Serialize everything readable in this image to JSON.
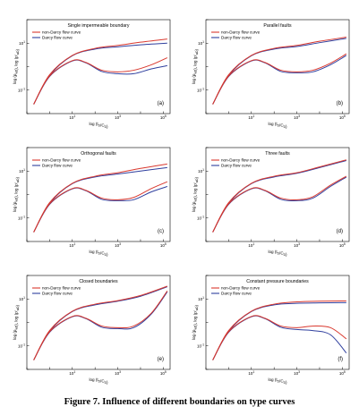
{
  "caption": "Figure 7. Influence of different boundaries on type curves",
  "colors": {
    "non_darcy": "#d9382e",
    "darcy": "#2f3f9e",
    "axis": "#000000"
  },
  "legend_labels": [
    "non-Darcy flow curve",
    "Darcy flow curve"
  ],
  "chart_data": [
    {
      "type": "line",
      "title": "Single impermeable boundary",
      "label": "(a)",
      "xlabel": "log (t_D/C_D)",
      "ylabel": "log (p_wD), log (p'_wD)",
      "xlog": true,
      "ylog": true,
      "xlim": [
        0.1,
        200000
      ],
      "ylim": [
        0.01,
        100
      ],
      "xticks": [
        "10^1",
        "10^3",
        "10^5"
      ],
      "yticks": [
        "10^-1",
        "10^1"
      ],
      "grid": false,
      "legend_position": "top-left",
      "series": [
        {
          "name": "non-Darcy flow curve",
          "x": [
            0.2,
            1,
            10,
            100,
            1000,
            10000,
            150000
          ],
          "y": [
            0.025,
            0.45,
            3.0,
            6.0,
            8.0,
            11.0,
            15.0
          ]
        },
        {
          "name": "non-Darcy flow curve",
          "x": [
            0.2,
            1,
            10,
            40,
            200,
            1000,
            5000,
            30000,
            150000
          ],
          "y": [
            0.025,
            0.4,
            1.8,
            1.5,
            0.7,
            0.6,
            0.7,
            1.2,
            2.4
          ]
        },
        {
          "name": "Darcy flow curve",
          "x": [
            0.2,
            1,
            10,
            100,
            1000,
            10000,
            150000
          ],
          "y": [
            0.025,
            0.42,
            2.9,
            5.6,
            7.0,
            8.5,
            10.0
          ]
        },
        {
          "name": "Darcy flow curve",
          "x": [
            0.2,
            1,
            10,
            40,
            200,
            1000,
            5000,
            30000,
            150000
          ],
          "y": [
            0.025,
            0.38,
            1.75,
            1.45,
            0.62,
            0.5,
            0.5,
            0.8,
            1.1
          ]
        }
      ]
    },
    {
      "type": "line",
      "title": "Parallel faults",
      "label": "(b)",
      "xlabel": "log (t_D/C_D)",
      "ylabel": "log (p_wD), log (p'_wD)",
      "xlog": true,
      "ylog": true,
      "xlim": [
        0.1,
        200000
      ],
      "ylim": [
        0.01,
        100
      ],
      "xticks": [
        "10^1",
        "10^3",
        "10^5"
      ],
      "yticks": [
        "10^-1",
        "10^1"
      ],
      "grid": false,
      "legend_position": "top-left",
      "series": [
        {
          "name": "non-Darcy flow curve",
          "x": [
            0.2,
            1,
            10,
            100,
            1000,
            10000,
            150000
          ],
          "y": [
            0.025,
            0.45,
            3.0,
            6.0,
            8.0,
            12.0,
            18.0
          ]
        },
        {
          "name": "non-Darcy flow curve",
          "x": [
            0.2,
            1,
            10,
            40,
            200,
            1000,
            5000,
            30000,
            150000
          ],
          "y": [
            0.025,
            0.4,
            1.8,
            1.5,
            0.7,
            0.6,
            0.7,
            1.4,
            3.5
          ]
        },
        {
          "name": "Darcy flow curve",
          "x": [
            0.2,
            1,
            10,
            100,
            1000,
            10000,
            150000
          ],
          "y": [
            0.025,
            0.42,
            2.9,
            5.6,
            7.2,
            10.5,
            16.0
          ]
        },
        {
          "name": "Darcy flow curve",
          "x": [
            0.2,
            1,
            10,
            40,
            200,
            1000,
            5000,
            30000,
            150000
          ],
          "y": [
            0.025,
            0.38,
            1.75,
            1.45,
            0.62,
            0.55,
            0.6,
            1.2,
            3.0
          ]
        }
      ]
    },
    {
      "type": "line",
      "title": "Orthogonal faults",
      "label": "(c)",
      "xlabel": "log (t_D/C_D)",
      "ylabel": "log (p_wD), log (p'_wD)",
      "xlog": true,
      "ylog": true,
      "xlim": [
        0.1,
        200000
      ],
      "ylim": [
        0.01,
        100
      ],
      "xticks": [
        "10^1",
        "10^3",
        "10^5"
      ],
      "yticks": [
        "10^-1",
        "10^1"
      ],
      "grid": false,
      "legend_position": "top-left",
      "series": [
        {
          "name": "non-Darcy flow curve",
          "x": [
            0.2,
            1,
            10,
            100,
            1000,
            10000,
            150000
          ],
          "y": [
            0.025,
            0.45,
            3.0,
            6.0,
            8.5,
            13.0,
            20.0
          ]
        },
        {
          "name": "non-Darcy flow curve",
          "x": [
            0.2,
            1,
            10,
            40,
            200,
            1000,
            5000,
            30000,
            150000
          ],
          "y": [
            0.025,
            0.4,
            1.8,
            1.5,
            0.7,
            0.6,
            0.75,
            1.8,
            3.5
          ]
        },
        {
          "name": "Darcy flow curve",
          "x": [
            0.2,
            1,
            10,
            100,
            1000,
            10000,
            150000
          ],
          "y": [
            0.025,
            0.42,
            2.9,
            5.6,
            7.5,
            10.0,
            14.0
          ]
        },
        {
          "name": "Darcy flow curve",
          "x": [
            0.2,
            1,
            10,
            40,
            200,
            1000,
            5000,
            30000,
            150000
          ],
          "y": [
            0.025,
            0.38,
            1.75,
            1.45,
            0.62,
            0.55,
            0.6,
            1.3,
            2.2
          ]
        }
      ]
    },
    {
      "type": "line",
      "title": "Three faults",
      "label": "(d)",
      "xlabel": "log (t_D/C_D)",
      "ylabel": "log (p_wD), log (p'_wD)",
      "xlog": true,
      "ylog": true,
      "xlim": [
        0.1,
        200000
      ],
      "ylim": [
        0.01,
        100
      ],
      "xticks": [
        "10^1",
        "10^3",
        "10^5"
      ],
      "yticks": [
        "10^-1",
        "10^1"
      ],
      "grid": false,
      "legend_position": "top-left",
      "series": [
        {
          "name": "non-Darcy flow curve",
          "x": [
            0.2,
            1,
            10,
            100,
            1000,
            10000,
            150000
          ],
          "y": [
            0.025,
            0.45,
            3.0,
            6.0,
            8.5,
            15.0,
            30.0
          ]
        },
        {
          "name": "non-Darcy flow curve",
          "x": [
            0.2,
            1,
            10,
            40,
            200,
            1000,
            5000,
            30000,
            150000
          ],
          "y": [
            0.025,
            0.4,
            1.8,
            1.5,
            0.7,
            0.6,
            0.8,
            2.5,
            6.0
          ]
        },
        {
          "name": "Darcy flow curve",
          "x": [
            0.2,
            1,
            10,
            100,
            1000,
            10000,
            150000
          ],
          "y": [
            0.025,
            0.42,
            2.9,
            5.6,
            8.0,
            14.0,
            28.0
          ]
        },
        {
          "name": "Darcy flow curve",
          "x": [
            0.2,
            1,
            10,
            40,
            200,
            1000,
            5000,
            30000,
            150000
          ],
          "y": [
            0.025,
            0.38,
            1.75,
            1.45,
            0.62,
            0.55,
            0.7,
            2.2,
            5.5
          ]
        }
      ]
    },
    {
      "type": "line",
      "title": "Closed boundaries",
      "label": "(e)",
      "xlabel": "log (t_D/C_D)",
      "ylabel": "log (p_wD), log (p'_wD)",
      "xlog": true,
      "ylog": true,
      "xlim": [
        0.1,
        200000
      ],
      "ylim": [
        0.01,
        100
      ],
      "xticks": [
        "10^1",
        "10^3",
        "10^5"
      ],
      "yticks": [
        "10^-1",
        "10^1"
      ],
      "grid": false,
      "legend_position": "top-left",
      "series": [
        {
          "name": "non-Darcy flow curve",
          "x": [
            0.2,
            1,
            10,
            100,
            1000,
            10000,
            150000
          ],
          "y": [
            0.025,
            0.45,
            3.0,
            6.0,
            8.5,
            14.0,
            35.0
          ]
        },
        {
          "name": "non-Darcy flow curve",
          "x": [
            0.2,
            1,
            10,
            40,
            200,
            1000,
            5000,
            30000,
            150000
          ],
          "y": [
            0.025,
            0.4,
            1.8,
            1.5,
            0.7,
            0.6,
            0.7,
            2.5,
            22.0
          ]
        },
        {
          "name": "Darcy flow curve",
          "x": [
            0.2,
            1,
            10,
            100,
            1000,
            10000,
            150000
          ],
          "y": [
            0.025,
            0.42,
            2.9,
            5.6,
            8.0,
            13.0,
            33.0
          ]
        },
        {
          "name": "Darcy flow curve",
          "x": [
            0.2,
            1,
            10,
            40,
            200,
            1000,
            5000,
            30000,
            150000
          ],
          "y": [
            0.025,
            0.38,
            1.75,
            1.45,
            0.62,
            0.55,
            0.6,
            2.3,
            20.0
          ]
        }
      ]
    },
    {
      "type": "line",
      "title": "Constant pressure boundaries",
      "label": "(f)",
      "xlabel": "log (t_D/C_D)",
      "ylabel": "log (p_wD), log (p'_wD)",
      "xlog": true,
      "ylog": true,
      "xlim": [
        0.1,
        200000
      ],
      "ylim": [
        0.01,
        100
      ],
      "xticks": [
        "10^1",
        "10^3",
        "10^5"
      ],
      "yticks": [
        "10^-1",
        "10^1"
      ],
      "grid": false,
      "legend_position": "top-left",
      "series": [
        {
          "name": "non-Darcy flow curve",
          "x": [
            0.2,
            1,
            10,
            100,
            1000,
            10000,
            150000
          ],
          "y": [
            0.025,
            0.45,
            3.0,
            6.0,
            7.5,
            8.0,
            8.2
          ]
        },
        {
          "name": "non-Darcy flow curve",
          "x": [
            0.2,
            1,
            10,
            40,
            200,
            1000,
            5000,
            30000,
            150000
          ],
          "y": [
            0.025,
            0.4,
            1.8,
            1.5,
            0.7,
            0.6,
            0.7,
            0.6,
            0.2
          ]
        },
        {
          "name": "Darcy flow curve",
          "x": [
            0.2,
            1,
            10,
            100,
            1000,
            10000,
            150000
          ],
          "y": [
            0.025,
            0.42,
            2.9,
            5.6,
            6.5,
            6.8,
            7.0
          ]
        },
        {
          "name": "Darcy flow curve",
          "x": [
            0.2,
            1,
            10,
            40,
            200,
            1000,
            5000,
            30000,
            150000
          ],
          "y": [
            0.025,
            0.38,
            1.75,
            1.45,
            0.62,
            0.5,
            0.45,
            0.3,
            0.05
          ]
        }
      ]
    }
  ]
}
